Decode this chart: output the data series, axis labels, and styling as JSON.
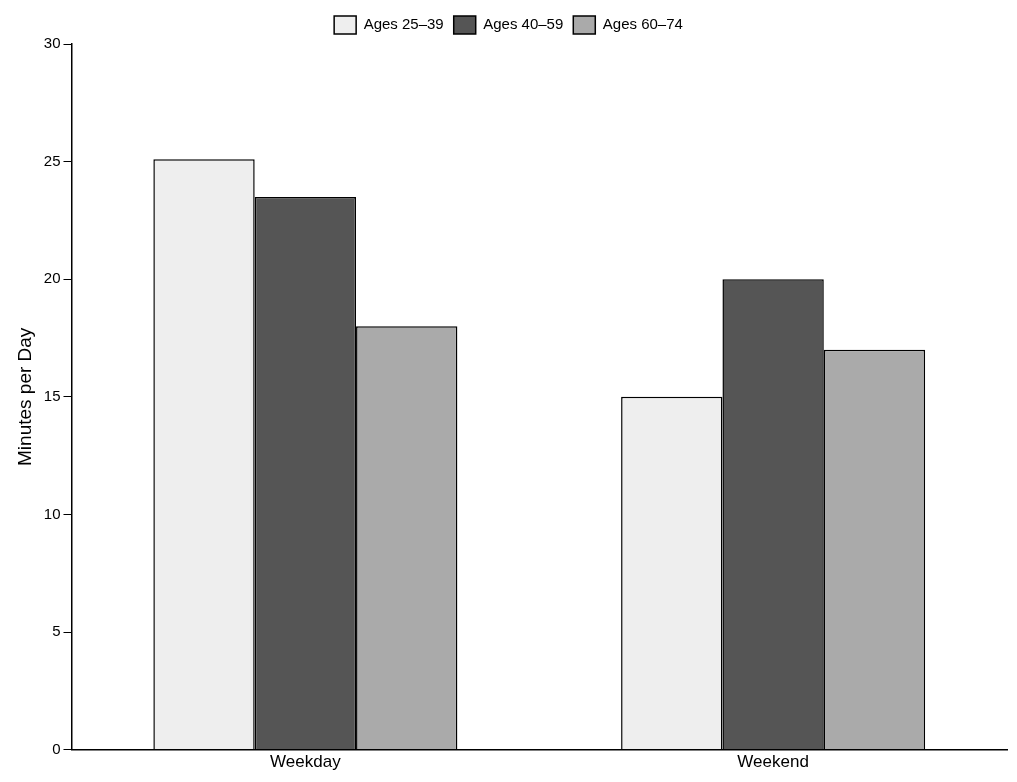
{
  "chart_data": {
    "type": "bar",
    "ylabel": "Minutes per Day",
    "categories": [
      "Weekday",
      "Weekend"
    ],
    "series": [
      {
        "name": "Ages 25–39",
        "color": "#eeeeee",
        "values": [
          25.1,
          15
        ]
      },
      {
        "name": "Ages 40–59",
        "color": "#555555",
        "values": [
          23.5,
          20
        ]
      },
      {
        "name": "Ages 60–74",
        "color": "#aaaaaa",
        "values": [
          18,
          17
        ]
      }
    ],
    "ylim": [
      0,
      30
    ],
    "yticks": [
      0,
      5,
      10,
      15,
      20,
      25,
      30
    ],
    "grid": false,
    "legend": "top"
  }
}
